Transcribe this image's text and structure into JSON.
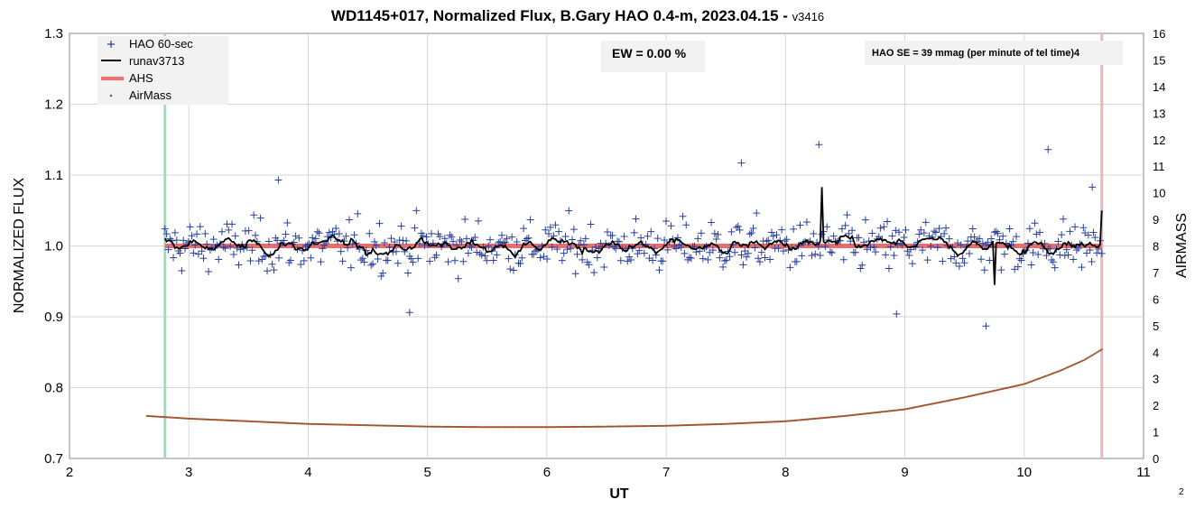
{
  "chart_data": {
    "type": "scatter",
    "title": "WD1145+017, Normalized Flux, B.Gary HAO 0.4-m, 2023.04.15 - ",
    "title_version": "v3416",
    "xlabel": "UT",
    "ylabel": "NORMALIZED FLUX",
    "y2label": "AIRMASS",
    "xlim": [
      2,
      11
    ],
    "ylim": [
      0.7,
      1.3
    ],
    "y2lim": [
      0,
      16
    ],
    "x_ticks": [
      "2",
      "3",
      "4",
      "5",
      "6",
      "7",
      "8",
      "9",
      "10",
      "11"
    ],
    "y_ticks": [
      "0.7",
      "0.8",
      "0.9",
      "1.0",
      "1.1",
      "1.2",
      "1.3"
    ],
    "y2_ticks": [
      "0",
      "1",
      "2",
      "3",
      "4",
      "5",
      "6",
      "7",
      "8",
      "9",
      "10",
      "11",
      "12",
      "13",
      "14",
      "15",
      "16"
    ],
    "grid": true,
    "legend_position": "top-left",
    "legend": [
      {
        "label": "HAO 60-sec",
        "marker": "plus",
        "color": "#2a3f9e"
      },
      {
        "label": "runav3713",
        "marker": "line",
        "color": "#000000"
      },
      {
        "label": "AHS",
        "marker": "thick-line",
        "color": "#f08080"
      },
      {
        "label": "AirMass",
        "marker": "dot",
        "color": "#a0522d"
      }
    ],
    "annotations": {
      "ew": "EW = 0.00 %",
      "se": "HAO SE =  39 mmag (per minute of tel time)4"
    },
    "vertical_lines": [
      {
        "x": 2.8,
        "color": "#9fdcc0"
      },
      {
        "x": 10.65,
        "color": "#e8b8b8"
      }
    ],
    "series": [
      {
        "name": "HAO 60-sec",
        "description": "approx. 600 one-minute normalized flux points, UT 2.8–10.65, scattered around 1.0 with SE ~0.039",
        "x_range": [
          2.8,
          10.65
        ],
        "mean": 1.0,
        "scatter_sd": 0.03,
        "notable_points": [
          {
            "x": 3.75,
            "y": 1.093
          },
          {
            "x": 4.85,
            "y": 0.906
          },
          {
            "x": 7.63,
            "y": 1.117
          },
          {
            "x": 8.28,
            "y": 1.143
          },
          {
            "x": 8.93,
            "y": 0.904
          },
          {
            "x": 9.68,
            "y": 0.887
          },
          {
            "x": 10.2,
            "y": 1.136
          },
          {
            "x": 10.57,
            "y": 1.083
          }
        ]
      },
      {
        "name": "runav3713",
        "description": "running average of flux, roughly 0.95–1.085",
        "x_range": [
          2.8,
          10.65
        ],
        "notable_points": [
          {
            "x": 8.3,
            "y": 1.083
          },
          {
            "x": 9.75,
            "y": 0.945
          },
          {
            "x": 10.65,
            "y": 1.05
          }
        ]
      },
      {
        "name": "AHS",
        "x": [
          2.8,
          10.65
        ],
        "y": [
          1.0,
          1.0
        ]
      },
      {
        "name": "AirMass",
        "axis": "right",
        "x": [
          2.65,
          3.0,
          3.5,
          4.0,
          4.5,
          5.0,
          5.5,
          6.0,
          6.5,
          7.0,
          7.5,
          8.0,
          8.5,
          9.0,
          9.5,
          10.0,
          10.3,
          10.5,
          10.65
        ],
        "y": [
          1.6,
          1.5,
          1.4,
          1.3,
          1.25,
          1.2,
          1.18,
          1.18,
          1.2,
          1.23,
          1.3,
          1.4,
          1.6,
          1.85,
          2.3,
          2.8,
          3.3,
          3.7,
          4.1
        ]
      }
    ]
  },
  "page_number": "2"
}
